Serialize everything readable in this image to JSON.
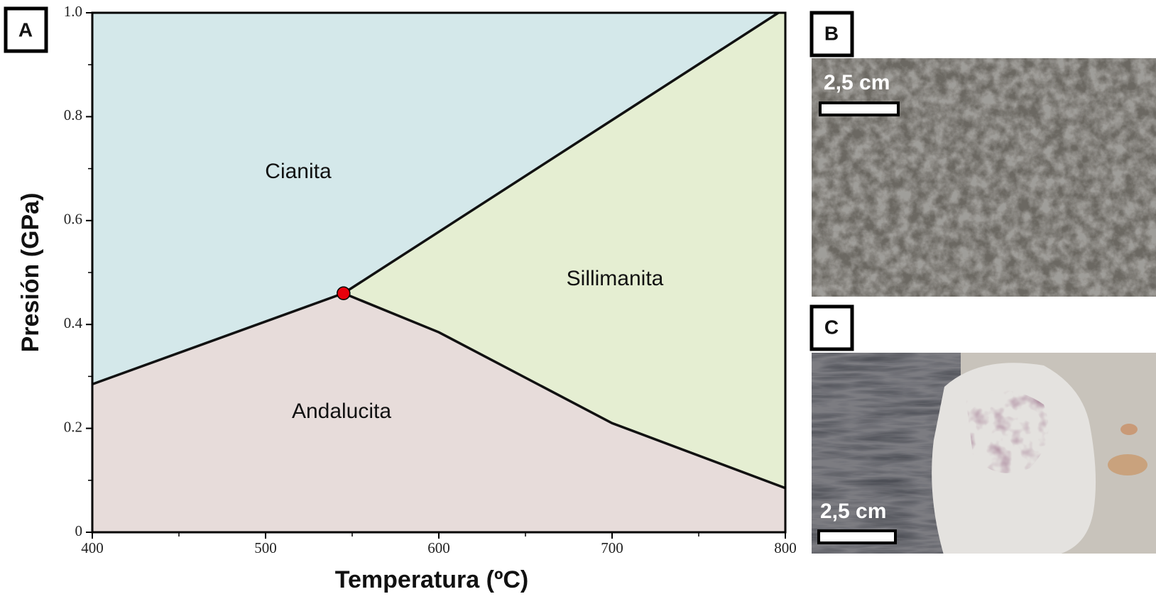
{
  "chart_data": {
    "type": "phase-diagram",
    "x_label": "Temperatura (ºC)",
    "y_label": "Presión (GPa)",
    "xlim": [
      400,
      800
    ],
    "ylim": [
      0,
      1
    ],
    "xticks": [
      400,
      500,
      600,
      700,
      800
    ],
    "xminorticks": [
      450,
      550,
      650,
      750
    ],
    "yticks": [
      0,
      0.2,
      0.4,
      0.6,
      0.8,
      {
        "value": 1,
        "label": "1.0"
      }
    ],
    "yminorticks": [
      0.1,
      0.3,
      0.5,
      0.7,
      0.9
    ],
    "regions": [
      {
        "name": "Cianita",
        "color": "#d4e8ea"
      },
      {
        "name": "Sillimanita",
        "color": "#e5eed2"
      },
      {
        "name": "Andalucita",
        "color": "#e7dcda"
      }
    ],
    "boundaries": [
      {
        "x": [
          400,
          545
        ],
        "y": [
          0.285,
          0.46
        ]
      },
      {
        "x": [
          545,
          796
        ],
        "y": [
          0.46,
          1.0
        ]
      },
      {
        "x": [
          545,
          600,
          700,
          800
        ],
        "y": [
          0.46,
          0.385,
          0.21,
          0.085
        ]
      }
    ],
    "boundary_color": "#111111",
    "triple_point": {
      "x": 545,
      "y": 0.46,
      "color": "#e8000b"
    }
  },
  "panel_labels": [
    "A",
    "B",
    "C"
  ],
  "photos": [
    {
      "scale": "2,5 cm"
    },
    {
      "scale": "2,5 cm"
    }
  ]
}
